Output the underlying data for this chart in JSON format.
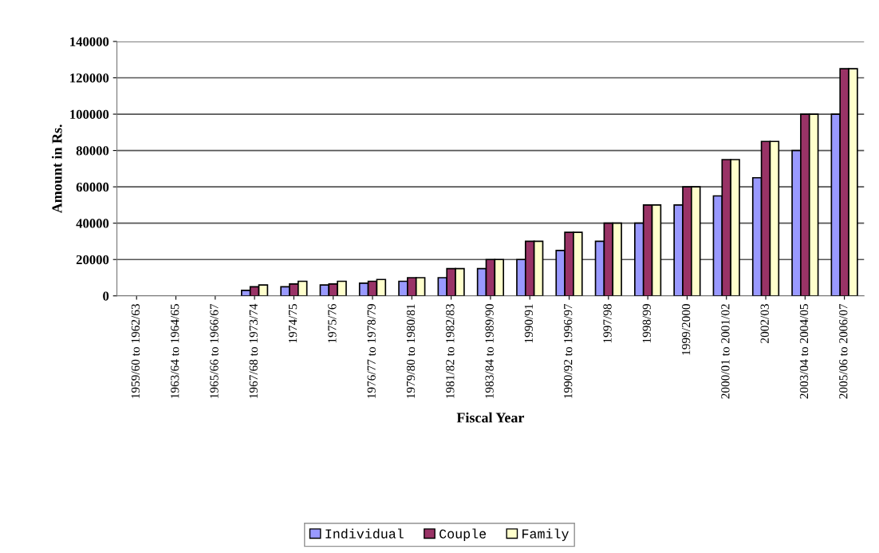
{
  "chart_data": {
    "type": "bar",
    "xlabel": "Fiscal Year",
    "ylabel": "Amount in Rs.",
    "categories": [
      "1959/60 to 1962/63",
      "1963/64 to 1964/65",
      "1965/66 to 1966/67",
      "1967/68 to 1973/74",
      "1974/75",
      "1975/76",
      "1976/77 to 1978/79",
      "1979/80 to 1980/81",
      "1981/82 to 1982/83",
      "1983/84 to 1989/90",
      "1990/91",
      "1990/92 to 1996/97",
      "1997/98",
      "1998/99",
      "1999/2000",
      "2000/01 to 2001/02",
      "2002/03",
      "2003/04 to 2004/05",
      "2005/06 to 2006/07"
    ],
    "series": [
      {
        "name": "Individual",
        "color": "#9999ff",
        "values": [
          null,
          null,
          null,
          3000,
          5000,
          6000,
          7000,
          8000,
          10000,
          15000,
          20000,
          25000,
          30000,
          40000,
          50000,
          55000,
          65000,
          80000,
          100000
        ]
      },
      {
        "name": "Couple",
        "color": "#993366",
        "values": [
          null,
          null,
          null,
          5000,
          6500,
          6500,
          8000,
          10000,
          15000,
          20000,
          30000,
          35000,
          40000,
          50000,
          60000,
          75000,
          85000,
          100000,
          125000
        ]
      },
      {
        "name": "Family",
        "color": "#ffffcc",
        "values": [
          null,
          null,
          null,
          6000,
          8000,
          8000,
          9000,
          10000,
          15000,
          20000,
          30000,
          35000,
          40000,
          50000,
          60000,
          75000,
          85000,
          100000,
          125000
        ]
      }
    ],
    "ylim": [
      0,
      140000
    ],
    "yticks": [
      0,
      20000,
      40000,
      60000,
      80000,
      100000,
      120000,
      140000
    ],
    "grid": "y",
    "legend": "bottom"
  }
}
